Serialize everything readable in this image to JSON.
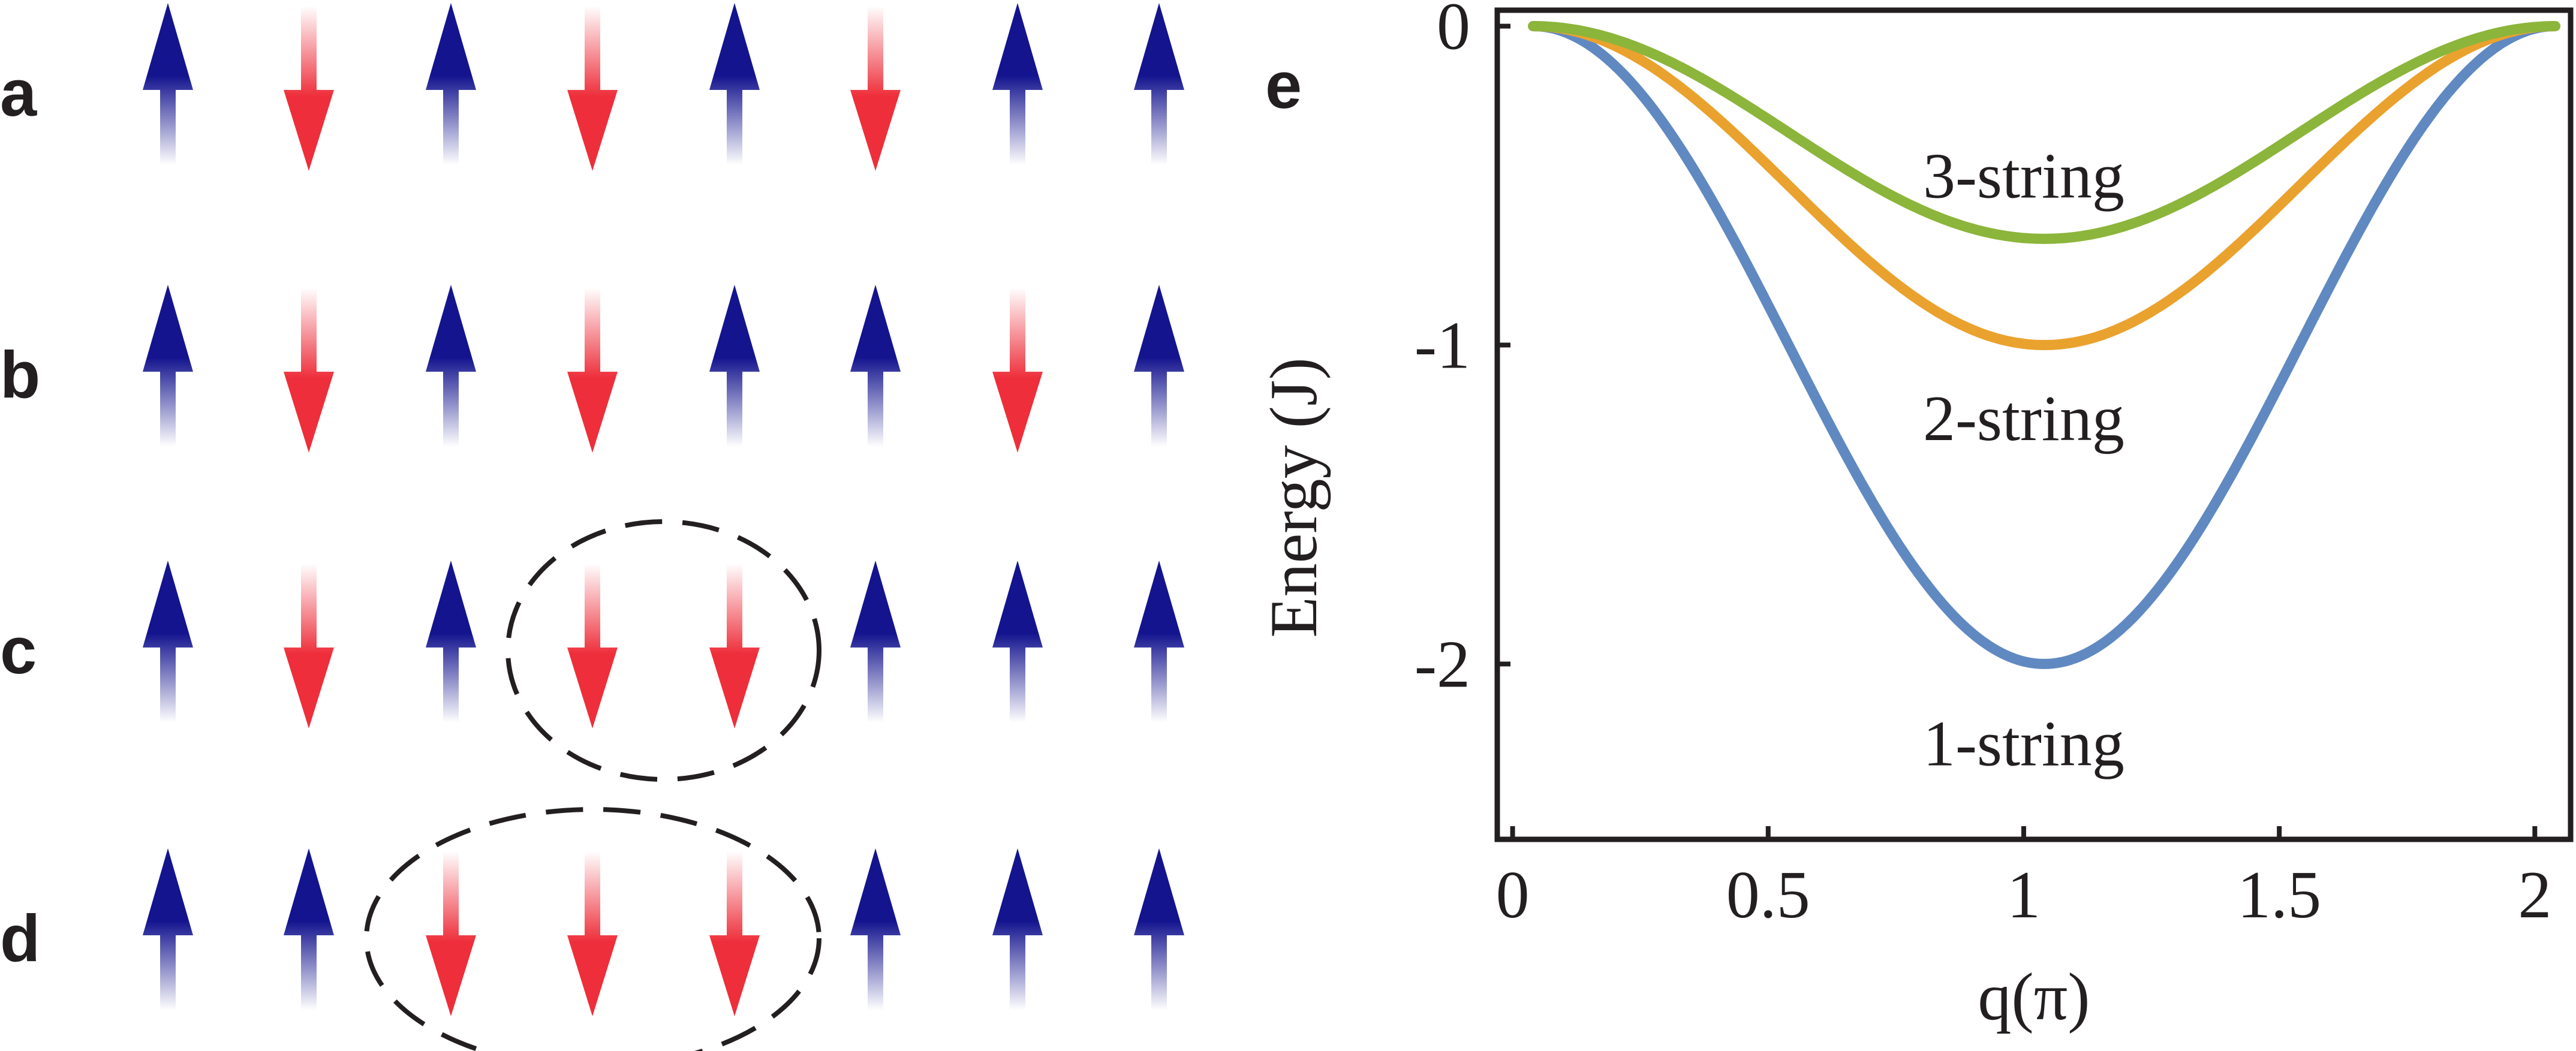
{
  "colors": {
    "up": "#14148f",
    "down": "#ee2e3a",
    "ink": "#231f20",
    "string_1": "#6089c1",
    "string_2": "#eaa22e",
    "string_3": "#8cb53b"
  },
  "spin_panels": [
    {
      "label": "a",
      "spins": [
        "up",
        "down",
        "up",
        "down",
        "up",
        "down",
        "up",
        "up"
      ],
      "cluster": null
    },
    {
      "label": "b",
      "spins": [
        "up",
        "down",
        "up",
        "down",
        "up",
        "up",
        "down",
        "up"
      ],
      "cluster": null
    },
    {
      "label": "c",
      "spins": [
        "up",
        "down",
        "up",
        "down",
        "down",
        "up",
        "up",
        "up"
      ],
      "cluster": {
        "from_site": 3,
        "to_site": 4
      }
    },
    {
      "label": "d",
      "spins": [
        "up",
        "up",
        "down",
        "down",
        "down",
        "up",
        "up",
        "up"
      ],
      "cluster": {
        "from_site": 2,
        "to_site": 4
      }
    }
  ],
  "chart_data": {
    "type": "line",
    "panel_label": "e",
    "title": "",
    "xlabel": "q(π)",
    "ylabel": "Energy (J)",
    "xlim": [
      -0.03,
      2.07
    ],
    "ylim": [
      -2.55,
      0.05
    ],
    "xticks": [
      0,
      0.5,
      1,
      1.5,
      2
    ],
    "xtick_labels": [
      "0",
      "0.5",
      "1",
      "1.5",
      "2"
    ],
    "yticks": [
      0,
      -1,
      -2
    ],
    "ytick_labels": [
      "0",
      "-1",
      "-2"
    ],
    "grid": false,
    "series": [
      {
        "name": "1-string",
        "label": "1-string",
        "color_key": "string_1",
        "n": 1,
        "x_range": [
          0.04,
          2.04
        ],
        "min_value": -2,
        "label_at": [
          1.0,
          -2.25
        ]
      },
      {
        "name": "2-string",
        "label": "2-string",
        "color_key": "string_2",
        "n": 2,
        "x_range": [
          0.04,
          2.04
        ],
        "min_value": -1,
        "label_at": [
          1.0,
          -1.23
        ]
      },
      {
        "name": "3-string",
        "label": "3-string",
        "color_key": "string_3",
        "n": 3,
        "x_range": [
          0.04,
          2.04
        ],
        "min_value": -0.667,
        "label_at": [
          1.0,
          -0.47
        ]
      }
    ]
  }
}
